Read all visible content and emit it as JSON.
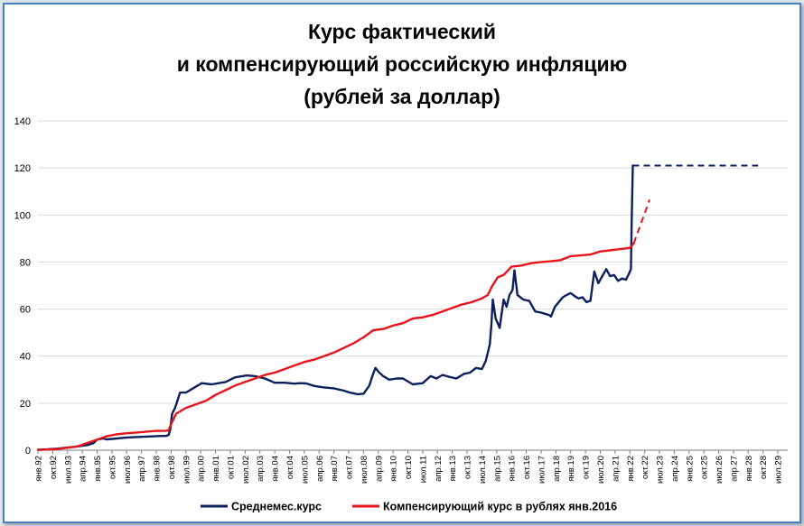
{
  "chart_data": {
    "type": "line",
    "title": [
      "Курс фактический",
      "и компенсирующий российскую инфляцию",
      "(рублей за доллар)"
    ],
    "xlabel": "",
    "ylabel": "",
    "ylim": [
      0,
      140
    ],
    "yticks": [
      0,
      20,
      40,
      60,
      80,
      100,
      120,
      140
    ],
    "xlim": [
      1992.0,
      2030.0
    ],
    "grid": true,
    "legend_position": "bottom",
    "x_tick_labels": [
      "янв.92",
      "окт.92",
      "июл.93",
      "апр.94",
      "янв.95",
      "окт.95",
      "июл.96",
      "апр.97",
      "янв.98",
      "окт.98",
      "июл.99",
      "апр.00",
      "янв.01",
      "окт.01",
      "июл.02",
      "апр.03",
      "янв.04",
      "окт.04",
      "июл.05",
      "апр.06",
      "янв.07",
      "окт.07",
      "июл.08",
      "апр.09",
      "янв.10",
      "окт.10",
      "июл.11",
      "апр.12",
      "янв.13",
      "окт.13",
      "июл.14",
      "апр.15",
      "янв.16",
      "окт.16",
      "июл.17",
      "апр.18",
      "янв.19",
      "окт.19",
      "июл.20",
      "апр.21",
      "янв.22",
      "окт.22",
      "июл.23",
      "апр.24",
      "янв.25",
      "окт.25",
      "июл.26",
      "апр.27",
      "янв.28",
      "окт.28",
      "июл.29"
    ],
    "series": [
      {
        "name": "Среднемес.курс",
        "color": "#0d1f5c",
        "x": [
          1992.0,
          1992.5,
          1993.0,
          1993.5,
          1994.0,
          1994.5,
          1994.8,
          1995.0,
          1995.3,
          1995.5,
          1996.0,
          1996.5,
          1997.0,
          1997.5,
          1998.0,
          1998.5,
          1998.62,
          1998.7,
          1998.8,
          1998.95,
          1999.2,
          1999.5,
          1999.8,
          2000.3,
          2000.8,
          2001.5,
          2002.0,
          2002.6,
          2003.0,
          2003.5,
          2004.0,
          2004.5,
          2005.0,
          2005.3,
          2005.6,
          2006.0,
          2006.5,
          2007.0,
          2007.5,
          2007.8,
          2008.2,
          2008.5,
          2008.8,
          2008.95,
          2009.1,
          2009.3,
          2009.5,
          2009.8,
          2010.2,
          2010.5,
          2011.0,
          2011.5,
          2011.9,
          2012.2,
          2012.5,
          2012.8,
          2013.2,
          2013.6,
          2013.9,
          2014.2,
          2014.5,
          2014.7,
          2014.9,
          2014.98,
          2015.05,
          2015.2,
          2015.4,
          2015.6,
          2015.75,
          2015.9,
          2016.05,
          2016.15,
          2016.3,
          2016.6,
          2016.9,
          2017.2,
          2017.5,
          2017.7,
          2017.9,
          2018.0,
          2018.2,
          2018.4,
          2018.6,
          2018.8,
          2019.0,
          2019.2,
          2019.4,
          2019.6,
          2019.8,
          2020.0,
          2020.2,
          2020.4,
          2020.6,
          2020.8,
          2021.0,
          2021.2,
          2021.4,
          2021.6,
          2021.8,
          2021.95,
          2022.05,
          2022.1,
          2022.15
        ],
        "y": [
          0.2,
          0.4,
          0.7,
          1.1,
          1.6,
          2.2,
          3.0,
          4.5,
          5.0,
          4.6,
          5.0,
          5.4,
          5.6,
          5.8,
          6.0,
          6.1,
          6.5,
          8.5,
          15.5,
          18.0,
          24.5,
          24.5,
          26.0,
          28.5,
          28.0,
          29.0,
          31.0,
          31.8,
          31.5,
          30.5,
          28.7,
          28.7,
          28.3,
          28.5,
          28.4,
          27.3,
          26.7,
          26.3,
          25.3,
          24.5,
          23.8,
          24.0,
          27.5,
          31.5,
          35.0,
          33.0,
          31.5,
          30.0,
          30.5,
          30.5,
          28.0,
          28.5,
          31.5,
          30.5,
          32.0,
          31.3,
          30.5,
          32.5,
          33.0,
          35.0,
          34.5,
          38.0,
          45.0,
          53.0,
          64.0,
          56.0,
          52.0,
          64.0,
          61.0,
          66.0,
          68.0,
          76.5,
          66.0,
          64.0,
          63.5,
          59.0,
          58.5,
          58.0,
          57.5,
          56.8,
          61.0,
          63.0,
          65.0,
          66.0,
          66.8,
          65.5,
          64.5,
          65.0,
          63.0,
          63.5,
          76.0,
          71.0,
          74.0,
          77.0,
          74.0,
          74.5,
          72.0,
          73.0,
          72.5,
          75.0,
          77.0,
          100.0,
          121.0
        ]
      },
      {
        "name": "Компенсирующий курс в рублях янв.2016",
        "color": "#e8141c",
        "x": [
          1992.0,
          1993.0,
          1994.0,
          1995.0,
          1995.5,
          1996.0,
          1996.5,
          1997.0,
          1997.5,
          1998.0,
          1998.5,
          1998.62,
          1998.8,
          1999.0,
          1999.5,
          2000.0,
          2000.5,
          2001.0,
          2001.5,
          2002.0,
          2002.5,
          2003.0,
          2003.5,
          2004.0,
          2004.5,
          2005.0,
          2005.5,
          2006.0,
          2006.5,
          2007.0,
          2007.5,
          2008.0,
          2008.5,
          2009.0,
          2009.5,
          2010.0,
          2010.5,
          2011.0,
          2011.5,
          2012.0,
          2012.5,
          2013.0,
          2013.5,
          2014.0,
          2014.5,
          2014.8,
          2015.0,
          2015.3,
          2015.6,
          2016.0,
          2016.5,
          2017.0,
          2017.5,
          2018.0,
          2018.5,
          2019.0,
          2019.5,
          2020.0,
          2020.5,
          2021.0,
          2021.5,
          2022.0,
          2022.2
        ],
        "y": [
          0.1,
          0.5,
          1.6,
          4.5,
          6.0,
          6.8,
          7.2,
          7.5,
          7.9,
          8.2,
          8.3,
          8.5,
          12.0,
          15.5,
          18.0,
          19.5,
          21.0,
          23.5,
          25.5,
          27.5,
          29.0,
          30.5,
          32.0,
          33.0,
          34.5,
          36.0,
          37.5,
          38.5,
          40.0,
          41.5,
          43.5,
          45.5,
          48.0,
          51.0,
          51.5,
          53.0,
          54.0,
          56.0,
          56.5,
          57.5,
          59.0,
          60.5,
          62.0,
          63.0,
          64.5,
          66.0,
          69.5,
          73.5,
          74.5,
          78.0,
          78.5,
          79.5,
          80.0,
          80.3,
          80.8,
          82.5,
          82.8,
          83.2,
          84.5,
          85.0,
          85.5,
          86.0,
          88.0
        ]
      },
      {
        "name": "",
        "color": "#0d1f5c",
        "dashed": true,
        "x": [
          2022.15,
          2028.5
        ],
        "y": [
          121.0,
          121.0
        ]
      },
      {
        "name": "",
        "color": "#e8141c",
        "dashed": true,
        "x": [
          2022.2,
          2023.0
        ],
        "y": [
          88.0,
          106.5
        ]
      }
    ]
  }
}
